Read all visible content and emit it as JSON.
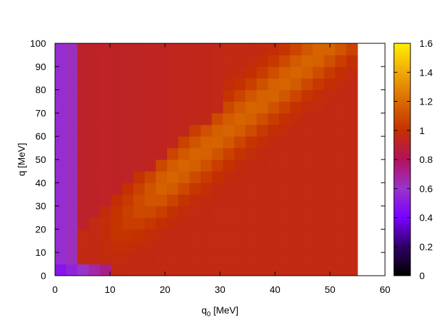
{
  "chart_data": {
    "type": "heatmap",
    "title": "",
    "xlabel_main": "q",
    "xlabel_sub": "0",
    "xlabel_unit": " [MeV]",
    "ylabel": "q [MeV]",
    "xlim": [
      0,
      60
    ],
    "ylim": [
      0,
      100
    ],
    "x_ticks": [
      "0",
      "10",
      "20",
      "30",
      "40",
      "50",
      "60"
    ],
    "y_ticks": [
      "0",
      "10",
      "20",
      "30",
      "40",
      "50",
      "60",
      "70",
      "80",
      "90",
      "100"
    ],
    "colorbar": {
      "range": [
        0,
        1.6
      ],
      "ticks": [
        "0",
        "0.2",
        "0.4",
        "0.6",
        "0.8",
        "1",
        "1.2",
        "1.4",
        "1.6"
      ],
      "palette": [
        "#000000",
        "#2e0066",
        "#7a00ff",
        "#9a33cc",
        "#b3115e",
        "#c43000",
        "#d86a00",
        "#f1a80a",
        "#ffee00"
      ]
    },
    "grid": {
      "x_start": 0,
      "x_end": 55,
      "nx": 27,
      "y_start": 0,
      "y_end": 100,
      "ny": 20
    },
    "value_model": {
      "background": 0.96,
      "low_q0_column": {
        "q0_max": 4,
        "value": 0.55
      },
      "edge_row": {
        "q_max": 5,
        "value": 0.45
      },
      "ridge_slope_q_per_q0": 2.0,
      "ridge_peak": 1.18,
      "ridge_width_q": 12,
      "upper_valley_value": 0.9,
      "lower_band_value": 0.95
    },
    "missing_region": {
      "q0_from": 55,
      "q0_to": 60
    }
  }
}
